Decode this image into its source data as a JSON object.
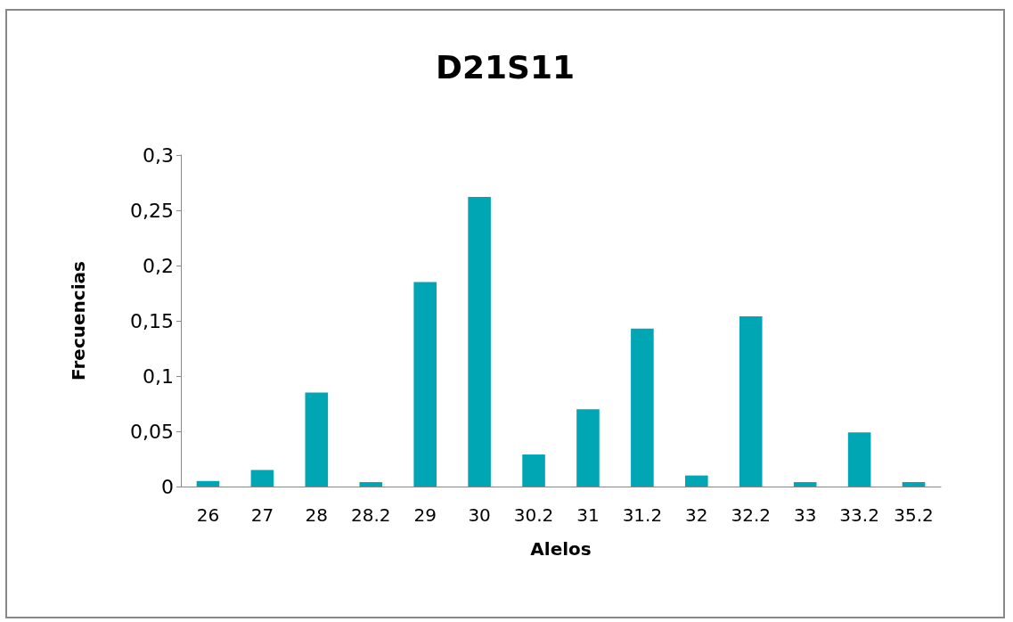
{
  "chart_data": {
    "type": "bar",
    "title": "D21S11",
    "xlabel": "Alelos",
    "ylabel": "Frecuencias",
    "categories": [
      "26",
      "27",
      "28",
      "28.2",
      "29",
      "30",
      "30.2",
      "31",
      "31.2",
      "32",
      "32.2",
      "33",
      "33.2",
      "35.2"
    ],
    "values": [
      0.005,
      0.015,
      0.085,
      0.004,
      0.185,
      0.262,
      0.029,
      0.07,
      0.143,
      0.01,
      0.154,
      0.004,
      0.049,
      0.004
    ],
    "color": "#00a6b4",
    "ylim": [
      0,
      0.3
    ],
    "yticks": [
      0,
      {
        "value": 0.05,
        "label": "0,05"
      },
      {
        "value": 0.1,
        "label": "0,1"
      },
      {
        "value": 0.15,
        "label": "0,15"
      },
      {
        "value": 0.2,
        "label": "0,2"
      },
      {
        "value": 0.25,
        "label": "0,25"
      },
      {
        "value": 0.3,
        "label": "0,3"
      }
    ],
    "grid": false
  }
}
